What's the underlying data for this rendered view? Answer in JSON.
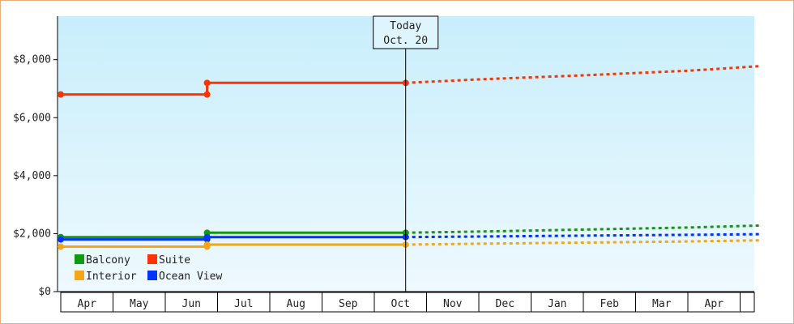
{
  "chart_data": {
    "type": "line",
    "x_unit": "month",
    "ylim": [
      0,
      9500
    ],
    "y_ticks": [
      {
        "value": 0,
        "label": "$0"
      },
      {
        "value": 2000,
        "label": "$2,000"
      },
      {
        "value": 4000,
        "label": "$4,000"
      },
      {
        "value": 6000,
        "label": "$6,000"
      },
      {
        "value": 8000,
        "label": "$8,000"
      }
    ],
    "x_months": [
      "Apr",
      "May",
      "Jun",
      "Jul",
      "Aug",
      "Sep",
      "Oct",
      "Nov",
      "Dec",
      "Jan",
      "Feb",
      "Mar",
      "Apr"
    ],
    "xlim": [
      0,
      13.4
    ],
    "grid": false,
    "background": "gradient light blue",
    "legend_placement": "bottom-left",
    "today_marker": {
      "line1": "Today",
      "line2": "Oct. 20",
      "x": 6.6
    },
    "series": [
      {
        "name": "Suite",
        "color": "#ff3300",
        "points": [
          [
            0,
            6800
          ],
          [
            2.8,
            6800
          ],
          [
            2.8,
            7200
          ],
          [
            6.6,
            7200
          ]
        ],
        "forecast": [
          [
            6.6,
            7200
          ],
          [
            8,
            7320
          ],
          [
            10,
            7460
          ],
          [
            12,
            7620
          ],
          [
            13.4,
            7780
          ]
        ]
      },
      {
        "name": "Balcony",
        "color": "#119911",
        "points": [
          [
            0,
            1880
          ],
          [
            2.8,
            1880
          ],
          [
            2.8,
            2030
          ],
          [
            6.6,
            2030
          ]
        ],
        "forecast": [
          [
            6.6,
            2030
          ],
          [
            8,
            2070
          ],
          [
            10,
            2140
          ],
          [
            12,
            2210
          ],
          [
            13.4,
            2280
          ]
        ]
      },
      {
        "name": "Ocean View",
        "color": "#0033ff",
        "points": [
          [
            0,
            1800
          ],
          [
            2.8,
            1800
          ],
          [
            2.8,
            1880
          ],
          [
            6.6,
            1880
          ]
        ],
        "forecast": [
          [
            6.6,
            1880
          ],
          [
            8,
            1900
          ],
          [
            10,
            1930
          ],
          [
            12,
            1960
          ],
          [
            13.4,
            1980
          ]
        ]
      },
      {
        "name": "Interior",
        "color": "#f5a614",
        "points": [
          [
            0,
            1550
          ],
          [
            2.8,
            1550
          ],
          [
            2.8,
            1620
          ],
          [
            6.6,
            1620
          ]
        ],
        "forecast": [
          [
            6.6,
            1620
          ],
          [
            8,
            1650
          ],
          [
            10,
            1690
          ],
          [
            12,
            1730
          ],
          [
            13.4,
            1770
          ]
        ]
      }
    ],
    "legend": [
      {
        "name": "Balcony",
        "color": "#119911"
      },
      {
        "name": "Suite",
        "color": "#ff3300"
      },
      {
        "name": "Interior",
        "color": "#f5a614"
      },
      {
        "name": "Ocean View",
        "color": "#0033ff"
      }
    ]
  }
}
